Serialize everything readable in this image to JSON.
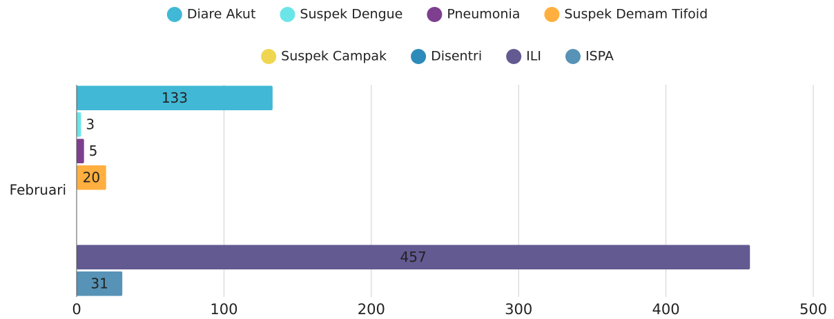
{
  "chart_data": {
    "type": "bar",
    "orientation": "horizontal",
    "categories": [
      "Februari"
    ],
    "series": [
      {
        "name": "Diare Akut",
        "color": "#41b8d5",
        "values": [
          133
        ]
      },
      {
        "name": "Suspek Dengue",
        "color": "#6ce5e8",
        "values": [
          3
        ]
      },
      {
        "name": "Pneumonia",
        "color": "#7e3f8f",
        "values": [
          5
        ]
      },
      {
        "name": "Suspek Demam Tifoid",
        "color": "#ffaf3f",
        "values": [
          20
        ]
      },
      {
        "name": "Suspek Campak",
        "color": "#f0d650",
        "values": [
          0
        ]
      },
      {
        "name": "Disentri",
        "color": "#2d8bba",
        "values": [
          0
        ]
      },
      {
        "name": "ILI",
        "color": "#625a91",
        "values": [
          457
        ]
      },
      {
        "name": "ISPA",
        "color": "#5793b6",
        "values": [
          31
        ]
      }
    ],
    "xlim": [
      0,
      500
    ],
    "xticks": [
      0,
      100,
      200,
      300,
      400,
      500
    ],
    "grid": true,
    "legend": "top"
  }
}
